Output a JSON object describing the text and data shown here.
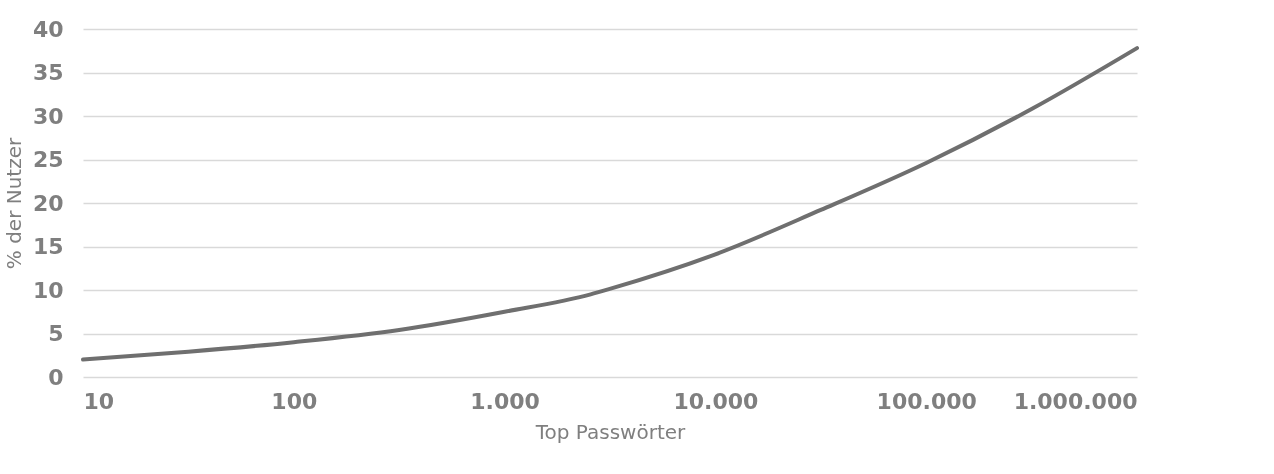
{
  "chart_data": {
    "type": "line",
    "xlabel": "Top Passwörter",
    "ylabel": "% der Nutzer",
    "log": "x",
    "grid": "y",
    "marker": "none",
    "line_style": "solid",
    "x": [
      10,
      31.6,
      100,
      316,
      1000,
      2560,
      3126,
      10000,
      31623,
      100000,
      316228,
      1000000
    ],
    "series": [
      {
        "color": "#6f6f6f",
        "values": [
          2,
          2.9,
          4,
          5.4,
          7.5,
          9.5,
          10.1,
          14.1,
          19.2,
          24.6,
          30.8,
          37.8
        ]
      }
    ],
    "xlim": [
      10,
      1000000
    ],
    "xticks": [
      10,
      100,
      {
        "value": 1000,
        "label": "1.000"
      },
      {
        "value": 10000,
        "label": "10.000"
      },
      {
        "value": 100000,
        "label": "100.000"
      },
      {
        "value": 1000000,
        "label": "1.000.000"
      }
    ],
    "ylim": [
      0,
      40
    ],
    "yticks": [
      0,
      5,
      10,
      15,
      20,
      25,
      30,
      35,
      40
    ]
  }
}
